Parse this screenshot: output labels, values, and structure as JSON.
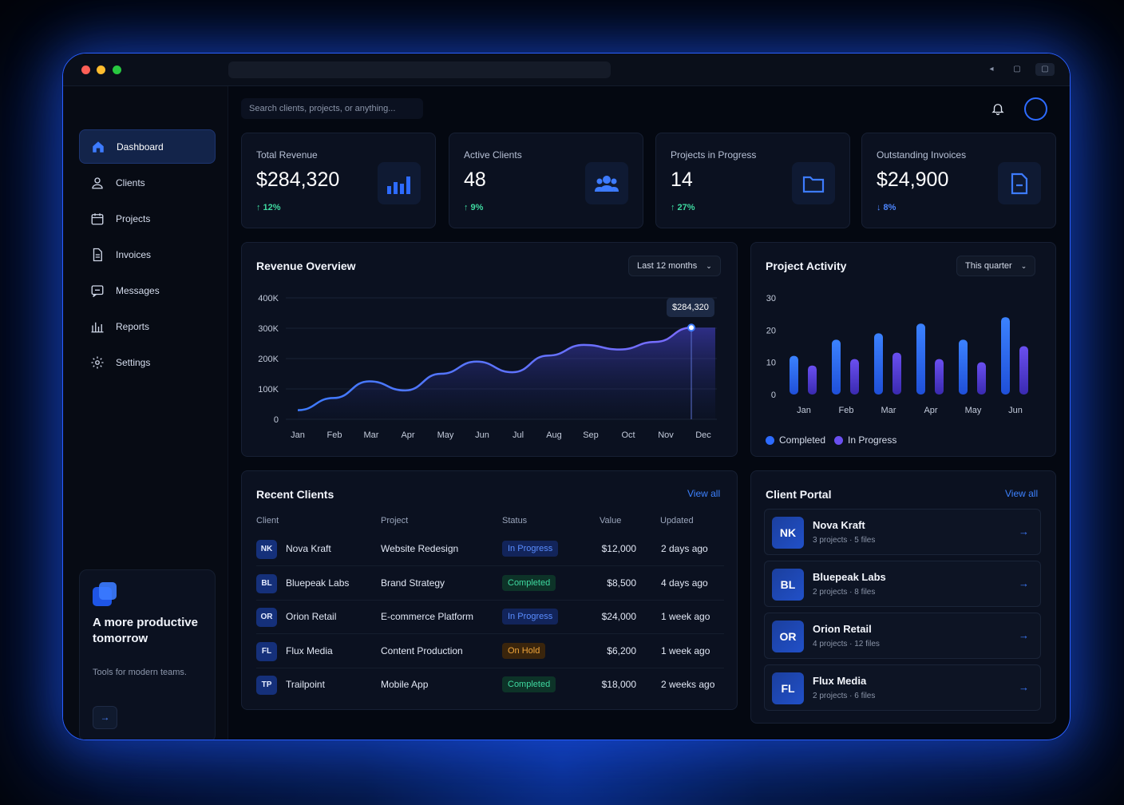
{
  "search": {
    "placeholder": "Search clients, projects, or anything..."
  },
  "sidebar": {
    "items": [
      {
        "label": "Dashboard",
        "icon": "home-icon"
      },
      {
        "label": "Clients",
        "icon": "user-icon"
      },
      {
        "label": "Projects",
        "icon": "calendar-icon"
      },
      {
        "label": "Invoices",
        "icon": "document-icon"
      },
      {
        "label": "Messages",
        "icon": "message-icon"
      },
      {
        "label": "Reports",
        "icon": "bar-chart-icon"
      },
      {
        "label": "Settings",
        "icon": "gear-icon"
      }
    ],
    "promo": {
      "title": "A more productive tomorrow",
      "subtitle": "Tools for modern teams."
    }
  },
  "stats": [
    {
      "label": "Total Revenue",
      "value": "$284,320",
      "change": "↑ 12%",
      "color": "#3fd9a0"
    },
    {
      "label": "Active Clients",
      "value": "48",
      "change": "↑ 9%",
      "color": "#3fd9a0"
    },
    {
      "label": "Projects in Progress",
      "value": "14",
      "change": "↑ 27%",
      "color": "#3fd9a0"
    },
    {
      "label": "Outstanding Invoices",
      "value": "$24,900",
      "change": "↓ 8%",
      "color": "#4d86ff"
    }
  ],
  "revenue": {
    "title": "Revenue Overview",
    "range": "Last 12 months",
    "tooltip": "$284,320"
  },
  "activity": {
    "title": "Project Activity",
    "range": "This quarter",
    "legend": [
      "Completed",
      "In Progress"
    ]
  },
  "chart_data": [
    {
      "type": "area",
      "title": "Revenue Overview",
      "categories": [
        "Jan",
        "Feb",
        "Mar",
        "Apr",
        "May",
        "Jun",
        "Jul",
        "Aug",
        "Sep",
        "Oct",
        "Nov",
        "Dec"
      ],
      "values": [
        30000,
        70000,
        125000,
        95000,
        150000,
        190000,
        155000,
        210000,
        245000,
        230000,
        255000,
        302000
      ],
      "yticks": [
        "0",
        "100K",
        "200K",
        "300K",
        "400K"
      ],
      "ylim": [
        0,
        400000
      ],
      "grid": true
    },
    {
      "type": "bar",
      "title": "Project Activity",
      "categories": [
        "Jan",
        "Feb",
        "Mar",
        "Apr",
        "May",
        "Jun"
      ],
      "yticks": [
        "0",
        "10",
        "20",
        "30"
      ],
      "ylim": [
        0,
        30
      ],
      "series": [
        {
          "name": "Completed",
          "values": [
            12,
            17,
            19,
            22,
            17,
            24
          ],
          "color": "#2d6bff"
        },
        {
          "name": "In Progress",
          "values": [
            9,
            11,
            13,
            11,
            10,
            15
          ],
          "color": "#5a3fd9"
        }
      ],
      "legend": "bottom-left"
    }
  ],
  "recent_clients": {
    "title": "Recent Clients",
    "view_all": "View all",
    "headers": [
      "Client",
      "Project",
      "Status",
      "Value",
      "Updated"
    ],
    "rows": [
      {
        "initials": "NK",
        "client": "Nova Kraft",
        "project": "Website Redesign",
        "status": "In Progress",
        "value": "$12,000",
        "updated": "2 days ago"
      },
      {
        "initials": "BL",
        "client": "Bluepeak Labs",
        "project": "Brand Strategy",
        "status": "Completed",
        "value": "$8,500",
        "updated": "4 days ago"
      },
      {
        "initials": "OR",
        "client": "Orion Retail",
        "project": "E-commerce Platform",
        "status": "In Progress",
        "value": "$24,000",
        "updated": "1 week ago"
      },
      {
        "initials": "FL",
        "client": "Flux Media",
        "project": "Content Production",
        "status": "On Hold",
        "value": "$6,200",
        "updated": "1 week ago"
      },
      {
        "initials": "TP",
        "client": "Trailpoint",
        "project": "Mobile App",
        "status": "Completed",
        "value": "$18,000",
        "updated": "2 weeks ago"
      }
    ]
  },
  "portal": {
    "title": "Client Portal",
    "view_all": "View all",
    "items": [
      {
        "initials": "NK",
        "name": "Nova Kraft",
        "meta": "3 projects · 5 files"
      },
      {
        "initials": "BL",
        "name": "Bluepeak Labs",
        "meta": "2 projects · 8 files"
      },
      {
        "initials": "OR",
        "name": "Orion Retail",
        "meta": "4 projects · 12 files"
      },
      {
        "initials": "FL",
        "name": "Flux Media",
        "meta": "2 projects · 6 files"
      }
    ]
  }
}
